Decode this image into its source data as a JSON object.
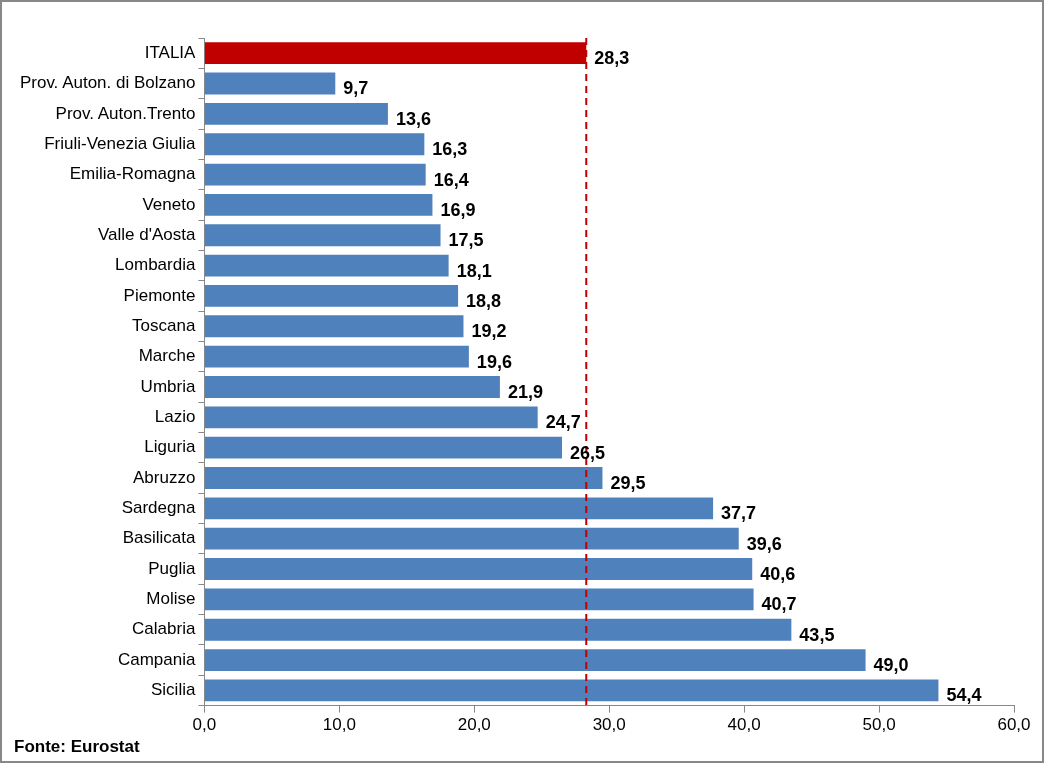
{
  "chart_data": {
    "type": "bar",
    "orientation": "horizontal",
    "categories": [
      "ITALIA",
      "Prov. Auton. di Bolzano",
      "Prov. Auton.Trento",
      "Friuli-Venezia Giulia",
      "Emilia-Romagna",
      "Veneto",
      "Valle d'Aosta",
      "Lombardia",
      "Piemonte",
      "Toscana",
      "Marche",
      "Umbria",
      "Lazio",
      "Liguria",
      "Abruzzo",
      "Sardegna",
      "Basilicata",
      "Puglia",
      "Molise",
      "Calabria",
      "Campania",
      "Sicilia"
    ],
    "values": [
      28.3,
      9.7,
      13.6,
      16.3,
      16.4,
      16.9,
      17.5,
      18.1,
      18.8,
      19.2,
      19.6,
      21.9,
      24.7,
      26.5,
      29.5,
      37.7,
      39.6,
      40.6,
      40.7,
      43.5,
      49.0,
      54.4
    ],
    "value_labels": [
      "28,3",
      "9,7",
      "13,6",
      "16,3",
      "16,4",
      "16,9",
      "17,5",
      "18,1",
      "18,8",
      "19,2",
      "19,6",
      "21,9",
      "24,7",
      "26,5",
      "29,5",
      "37,7",
      "39,6",
      "40,6",
      "40,7",
      "43,5",
      "49,0",
      "54,4"
    ],
    "colors": [
      "#c00000",
      "#4f81bd",
      "#4f81bd",
      "#4f81bd",
      "#4f81bd",
      "#4f81bd",
      "#4f81bd",
      "#4f81bd",
      "#4f81bd",
      "#4f81bd",
      "#4f81bd",
      "#4f81bd",
      "#4f81bd",
      "#4f81bd",
      "#4f81bd",
      "#4f81bd",
      "#4f81bd",
      "#4f81bd",
      "#4f81bd",
      "#4f81bd",
      "#4f81bd",
      "#4f81bd"
    ],
    "xlim": [
      0,
      60
    ],
    "xticks": [
      {
        "value": 0,
        "label": "0,0"
      },
      {
        "value": 10,
        "label": "10,0"
      },
      {
        "value": 20,
        "label": "20,0"
      },
      {
        "value": 30,
        "label": "30,0"
      },
      {
        "value": 40,
        "label": "40,0"
      },
      {
        "value": 50,
        "label": "50,0"
      },
      {
        "value": 60,
        "label": "60,0"
      }
    ],
    "ref_lines": [
      {
        "axis": "x",
        "value": 28.3,
        "label": null,
        "color": "#c00000",
        "line_style": "dashed"
      }
    ],
    "grid": false,
    "legend": false,
    "annotations": [
      "Fonte: Eurostat"
    ]
  }
}
